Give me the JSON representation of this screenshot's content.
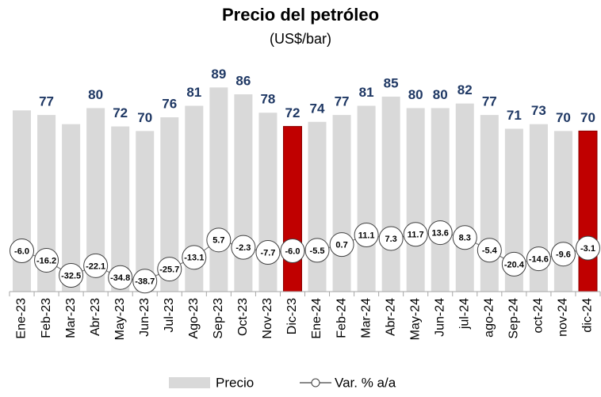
{
  "chart_data": {
    "type": "bar",
    "title": "Precio del petróleo",
    "subtitle": "(US$/bar)",
    "categories": [
      "Ene-23",
      "Feb-23",
      "Mar-23",
      "Abr-23",
      "May-23",
      "Jun-23",
      "Jul-23",
      "Ago-23",
      "Sep-23",
      "Oct-23",
      "Nov-23",
      "Dic-23",
      "Ene-24",
      "Feb-24",
      "Mar-24",
      "Abr-24",
      "May-24",
      "Jun-24",
      "jul-24",
      "ago-24",
      "Sep-24",
      "oct-24",
      "nov-24",
      "dic-24"
    ],
    "ylim": [
      0,
      95
    ],
    "y2lim": [
      -50,
      185
    ],
    "series": [
      {
        "name": "Precio",
        "type": "bar",
        "color": "#d9d9d9",
        "colors": [
          "#d9d9d9",
          "#d9d9d9",
          "#d9d9d9",
          "#d9d9d9",
          "#d9d9d9",
          "#d9d9d9",
          "#d9d9d9",
          "#d9d9d9",
          "#d9d9d9",
          "#d9d9d9",
          "#d9d9d9",
          "#c00000",
          "#d9d9d9",
          "#d9d9d9",
          "#d9d9d9",
          "#d9d9d9",
          "#d9d9d9",
          "#d9d9d9",
          "#d9d9d9",
          "#d9d9d9",
          "#d9d9d9",
          "#d9d9d9",
          "#d9d9d9",
          "#c00000"
        ],
        "values": [
          79,
          77,
          73,
          80,
          72,
          70,
          76,
          81,
          89,
          86,
          78,
          72,
          74,
          77,
          81,
          85,
          80,
          80,
          82,
          77,
          71,
          73,
          70,
          70
        ],
        "value_labels": [
          null,
          "77",
          null,
          "80",
          "72",
          "70",
          "76",
          "81",
          "89",
          "86",
          "78",
          "72",
          "74",
          "77",
          "81",
          "85",
          "80",
          "80",
          "82",
          "77",
          "71",
          "73",
          "70",
          "70"
        ]
      },
      {
        "name": "Var. % a/a",
        "type": "line",
        "axis": "y2",
        "color": "#7f7f7f",
        "values": [
          -6.0,
          -16.2,
          -32.5,
          -22.1,
          -34.8,
          -38.7,
          -25.7,
          -13.1,
          5.7,
          -2.3,
          -7.7,
          -6.0,
          -5.5,
          0.7,
          11.1,
          7.3,
          11.7,
          13.6,
          8.3,
          -5.4,
          -20.4,
          -14.6,
          -9.6,
          -3.1
        ],
        "value_labels": [
          "-6.0",
          "-16.2",
          "-32.5",
          "-22.1",
          "-34.8",
          "-38.7",
          "-25.7",
          "-13.1",
          "5.7",
          "-2.3",
          "-7.7",
          "-6.0",
          "-5.5",
          "0.7",
          "11.1",
          "7.3",
          "11.7",
          "13.6",
          "8.3",
          "-5.4",
          "-20.4",
          "-14.6",
          "-9.6",
          "-3.1"
        ]
      }
    ]
  }
}
